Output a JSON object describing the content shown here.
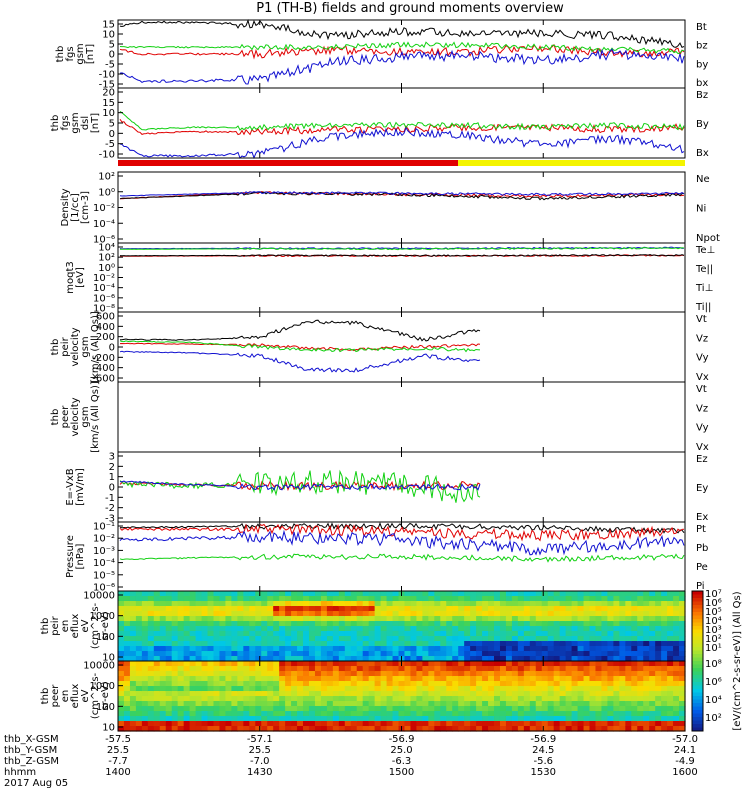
{
  "title": "P1 (TH-B) fields and ground moments overview",
  "colors": {
    "black": "#000000",
    "red": "#e00000",
    "green": "#10d010",
    "blue": "#1010d0",
    "mode_bar_1": "#e00000",
    "mode_bar_2": "#f4f400"
  },
  "panels": [
    {
      "id": "fgs-gsm",
      "ylabel": [
        "thb",
        "fgs",
        "gsm",
        "[nT]"
      ],
      "yticks": [
        "15",
        "10",
        "5",
        "0",
        "-5",
        "-10",
        "-15"
      ],
      "legend": [
        {
          "text": "Bt",
          "color": "black"
        },
        {
          "text": "bz",
          "color": "red"
        },
        {
          "text": "by",
          "color": "green"
        },
        {
          "text": "bx",
          "color": "blue"
        }
      ]
    },
    {
      "id": "fgs-gsm-dsl",
      "ylabel": [
        "thb",
        "fgs",
        "gsm",
        "dsl",
        "[nT]"
      ],
      "yticks": [
        "20",
        "15",
        "10",
        "5",
        "0",
        "-5",
        "-10"
      ],
      "legend": [
        {
          "text": "Bz",
          "color": "red"
        },
        {
          "text": "By",
          "color": "green"
        },
        {
          "text": "Bx",
          "color": "blue"
        }
      ]
    },
    {
      "id": "density",
      "ylabel": [
        "Density",
        "[1/cc]",
        "[cm-3]"
      ],
      "yticks": [
        "10²",
        "10⁰",
        "10⁻²",
        "10⁻⁴",
        "10⁻⁶"
      ],
      "legend": [
        {
          "text": "Ne",
          "color": "red"
        },
        {
          "text": "Ni",
          "color": "black"
        },
        {
          "text": "Npot",
          "color": "blue"
        }
      ]
    },
    {
      "id": "temperature",
      "ylabel": [
        "moqt3",
        "[eV]"
      ],
      "yticks": [
        "10⁴",
        "10²",
        "10⁰",
        "10⁻²",
        "10⁻⁴",
        "10⁻⁶",
        "10⁻⁸"
      ],
      "legend": [
        {
          "text": "Te⊥",
          "color": "red"
        },
        {
          "text": "Te||",
          "color": "black"
        },
        {
          "text": "Ti⊥",
          "color": "blue"
        },
        {
          "text": "Ti||",
          "color": "green"
        }
      ]
    },
    {
      "id": "peir-velocity",
      "ylabel": [
        "thb",
        "peir",
        "velocity",
        "gsm",
        "[km/s (All Qs)]"
      ],
      "yticks": [
        "600",
        "400",
        "200",
        "0",
        "-200",
        "-400",
        "-600"
      ],
      "legend": [
        {
          "text": "Vt",
          "color": "black"
        },
        {
          "text": "Vz",
          "color": "red"
        },
        {
          "text": "Vy",
          "color": "green"
        },
        {
          "text": "Vx",
          "color": "blue"
        }
      ]
    },
    {
      "id": "peer-velocity",
      "ylabel": [
        "thb",
        "peer",
        "velocity",
        "gsm",
        "[km/s (All Qs)]"
      ],
      "yticks": [],
      "legend": [
        {
          "text": "Vt",
          "color": "black"
        },
        {
          "text": "Vz",
          "color": "red"
        },
        {
          "text": "Vy",
          "color": "green"
        },
        {
          "text": "Vx",
          "color": "blue"
        }
      ]
    },
    {
      "id": "efield",
      "ylabel": [
        "E=-VxB",
        "[mV/m]"
      ],
      "yticks": [
        "3",
        "2",
        "1",
        "0",
        "-1",
        "-2",
        "-3"
      ],
      "legend": [
        {
          "text": "Ez",
          "color": "red"
        },
        {
          "text": "Ey",
          "color": "green"
        },
        {
          "text": "Ex",
          "color": "blue"
        }
      ]
    },
    {
      "id": "pressure",
      "ylabel": [
        "Pressure",
        "[nPa]"
      ],
      "yticks": [
        "10⁻¹",
        "10⁻²",
        "10⁻³",
        "10⁻⁴",
        "10⁻⁵",
        "10⁻⁶"
      ],
      "legend": [
        {
          "text": "Pt",
          "color": "black"
        },
        {
          "text": "Pb",
          "color": "red"
        },
        {
          "text": "Pe",
          "color": "green"
        },
        {
          "text": "Pi",
          "color": "blue"
        }
      ]
    },
    {
      "id": "peir-eflux",
      "ylabel": [
        "thb",
        "peir",
        "en",
        "eflux",
        "eV",
        "(cm^2-s-",
        "sr-eV)"
      ],
      "yticks": [
        "10000",
        "1000",
        "100",
        "10"
      ]
    },
    {
      "id": "peer-eflux",
      "ylabel": [
        "thb",
        "peer",
        "en",
        "eflux",
        "eV",
        "(cm^2-s-",
        "sr-eV)"
      ],
      "yticks": [
        "10000",
        "1000",
        "100",
        "10"
      ]
    }
  ],
  "colorbar": {
    "label": "[eV/(cm^2-s-sr-eV)] (All Qs)",
    "ticks_top": [
      "10⁷",
      "10⁶",
      "10⁵",
      "10⁴",
      "10³",
      "10²",
      "10¹"
    ],
    "ticks_bottom": [
      "10⁸",
      "10⁶",
      "10⁴",
      "10²"
    ]
  },
  "x_axis": {
    "rows": [
      {
        "name": "thb_X-GSM",
        "values": [
          "-57.5",
          "-57.1",
          "-56.9",
          "-56.9",
          "-57.0"
        ]
      },
      {
        "name": "thb_Y-GSM",
        "values": [
          "25.5",
          "25.5",
          "25.0",
          "24.5",
          "24.1"
        ]
      },
      {
        "name": "thb_Z-GSM",
        "values": [
          "-7.7",
          "-7.0",
          "-6.3",
          "-5.6",
          "-4.9"
        ]
      },
      {
        "name": "hhmm",
        "values": [
          "1400",
          "1430",
          "1500",
          "1530",
          "1600"
        ]
      }
    ],
    "date": "2017 Aug 05"
  },
  "chart_data": {
    "type": "line",
    "title": "P1 (TH-B) fields and ground moments overview",
    "date": "2017 Aug 05",
    "x": [
      "1400",
      "1430",
      "1500",
      "1530",
      "1600"
    ],
    "xlabel": "hhmm",
    "panels": [
      {
        "name": "fgs gsm",
        "ylim": [
          -15,
          15
        ],
        "series": [
          {
            "name": "Bt",
            "x": [
              1400,
              1405,
              1415,
              1430,
              1445,
              1500,
              1515,
              1530,
              1545,
              1600
            ],
            "values": [
              12,
              14,
              14,
              13,
              8,
              10,
              9,
              9,
              8,
              4
            ]
          },
          {
            "name": "bz",
            "x": [
              1400,
              1405,
              1415,
              1430,
              1445,
              1500,
              1515,
              1530,
              1545,
              1600
            ],
            "values": [
              2,
              0,
              0,
              0,
              2,
              1,
              1,
              3,
              0,
              1
            ]
          },
          {
            "name": "by",
            "x": [
              1400,
              1405,
              1415,
              1430,
              1445,
              1500,
              1515,
              1530,
              1545,
              1600
            ],
            "values": [
              3,
              3,
              3,
              3,
              3,
              4,
              4,
              3,
              2,
              1
            ]
          },
          {
            "name": "bx",
            "x": [
              1400,
              1405,
              1415,
              1430,
              1445,
              1500,
              1515,
              1530,
              1545,
              1600
            ],
            "values": [
              -8,
              -12,
              -12,
              -11,
              -4,
              -1,
              -1,
              -3,
              0,
              -2
            ]
          }
        ]
      },
      {
        "name": "fgs gsm dsl",
        "ylim": [
          -12,
          20
        ],
        "series": [
          {
            "name": "Bz",
            "x": [
              1400,
              1405,
              1415,
              1430,
              1445,
              1500,
              1515,
              1530,
              1545,
              1600
            ],
            "values": [
              6,
              -1,
              0,
              0,
              1,
              1,
              2,
              2,
              1,
              2
            ]
          },
          {
            "name": "By",
            "x": [
              1400,
              1405,
              1415,
              1430,
              1445,
              1500,
              1515,
              1530,
              1545,
              1600
            ],
            "values": [
              10,
              1,
              2,
              2,
              3,
              3,
              3,
              2,
              3,
              2
            ]
          },
          {
            "name": "Bx",
            "x": [
              1400,
              1405,
              1415,
              1430,
              1445,
              1500,
              1515,
              1530,
              1545,
              1600
            ],
            "values": [
              -5,
              -11,
              -11,
              -10,
              -2,
              0,
              -2,
              -6,
              -3,
              -8
            ]
          }
        ]
      },
      {
        "name": "Density",
        "scale": "log",
        "ylim": [
          1e-06,
          100
        ],
        "series": [
          {
            "name": "Ne",
            "x": [
              1400,
              1430,
              1500,
              1530,
              1600
            ],
            "values": [
              0.1,
              0.5,
              0.3,
              0.2,
              0.3
            ]
          },
          {
            "name": "Ni",
            "x": [
              1400,
              1430,
              1500,
              1530,
              1600
            ],
            "values": [
              0.1,
              0.4,
              0.3,
              0.1,
              0.3
            ]
          },
          {
            "name": "Npot",
            "x": [
              1400,
              1430,
              1500,
              1530,
              1600
            ],
            "values": [
              0.2,
              0.5,
              0.4,
              0.3,
              0.4
            ]
          }
        ]
      },
      {
        "name": "moqt3",
        "scale": "log",
        "ylim": [
          1e-08,
          10000
        ],
        "series": [
          {
            "name": "Te⊥",
            "x": [
              1400,
              1430,
              1500,
              1530,
              1600
            ],
            "values": [
              50,
              60,
              55,
              60,
              70
            ]
          },
          {
            "name": "Te||",
            "x": [
              1400,
              1430,
              1500,
              1530,
              1600
            ],
            "values": [
              60,
              70,
              65,
              70,
              80
            ]
          },
          {
            "name": "Ti⊥",
            "x": [
              1400,
              1430,
              1500,
              1530,
              1600
            ],
            "values": [
              1000,
              1200,
              1100,
              1300,
              1500
            ]
          },
          {
            "name": "Ti||",
            "x": [
              1400,
              1430,
              1500,
              1530,
              1600
            ],
            "values": [
              800,
              1000,
              900,
              1100,
              1300
            ]
          }
        ]
      },
      {
        "name": "peir velocity gsm",
        "ylim": [
          -600,
          600
        ],
        "series": [
          {
            "name": "Vt",
            "x": [
              1400,
              1415,
              1430,
              1440,
              1450,
              1505,
              1515
            ],
            "values": [
              130,
              120,
              170,
              430,
              420,
              120,
              280
            ]
          },
          {
            "name": "Vz",
            "x": [
              1400,
              1415,
              1430,
              1440,
              1450,
              1505,
              1515
            ],
            "values": [
              60,
              50,
              40,
              -20,
              -40,
              10,
              30
            ]
          },
          {
            "name": "Vy",
            "x": [
              1400,
              1415,
              1430,
              1440,
              1450,
              1505,
              1515
            ],
            "values": [
              100,
              80,
              0,
              -50,
              -50,
              -20,
              -60
            ]
          },
          {
            "name": "Vx",
            "x": [
              1400,
              1415,
              1430,
              1440,
              1450,
              1505,
              1515
            ],
            "values": [
              -80,
              -100,
              -150,
              -380,
              -400,
              -150,
              -250
            ]
          }
        ]
      },
      {
        "name": "E=-VxB",
        "ylim": [
          -3,
          3
        ],
        "series": [
          {
            "name": "Ez",
            "x": [
              1400,
              1415,
              1430,
              1445,
              1505,
              1515
            ],
            "values": [
              0.3,
              0.2,
              0.1,
              0.1,
              0.1,
              0.2
            ]
          },
          {
            "name": "Ey",
            "x": [
              1400,
              1415,
              1430,
              1445,
              1505,
              1515
            ],
            "values": [
              0.3,
              0.1,
              0.2,
              0.5,
              0.0,
              -0.5
            ]
          },
          {
            "name": "Ex",
            "x": [
              1400,
              1415,
              1430,
              1445,
              1505,
              1515
            ],
            "values": [
              0.5,
              0.2,
              0.0,
              0.0,
              0.0,
              0.0
            ]
          }
        ]
      },
      {
        "name": "Pressure",
        "scale": "log",
        "ylim": [
          1e-06,
          0.1
        ],
        "series": [
          {
            "name": "Pt",
            "x": [
              1400,
              1430,
              1500,
              1530,
              1600
            ],
            "values": [
              0.04,
              0.05,
              0.05,
              0.04,
              0.02
            ]
          },
          {
            "name": "Pb",
            "x": [
              1400,
              1430,
              1500,
              1530,
              1600
            ],
            "values": [
              0.03,
              0.03,
              0.02,
              0.01,
              0.02
            ]
          },
          {
            "name": "Pe",
            "x": [
              1400,
              1430,
              1500,
              1530,
              1600
            ],
            "values": [
              0.0002,
              0.0003,
              0.0003,
              0.0002,
              0.0003
            ]
          },
          {
            "name": "Pi",
            "x": [
              1400,
              1430,
              1500,
              1530,
              1600
            ],
            "values": [
              0.005,
              0.008,
              0.005,
              0.001,
              0.005
            ]
          }
        ]
      }
    ]
  }
}
